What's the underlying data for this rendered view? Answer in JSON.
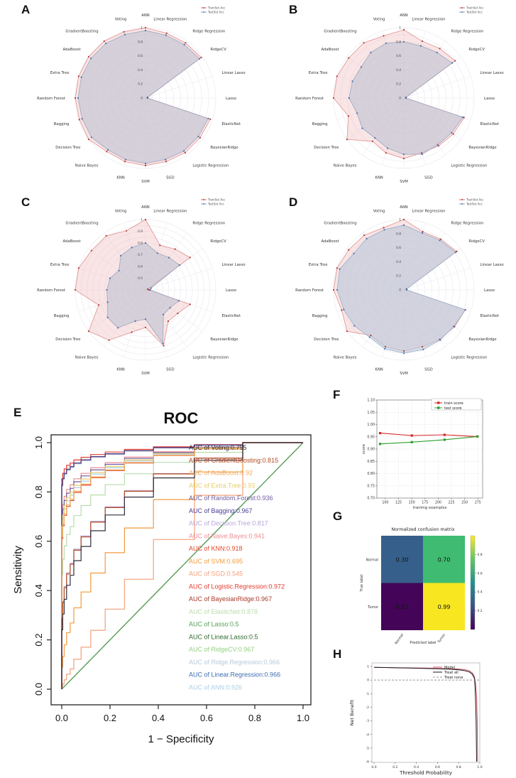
{
  "panel_letters": {
    "A": "A",
    "B": "B",
    "C": "C",
    "D": "D",
    "E": "E",
    "F": "F",
    "G": "G",
    "H": "H"
  },
  "radar_common": {
    "categories": [
      "ANN",
      "Linear Regression",
      "Ridge Regression",
      "RidgeCV",
      "Linear Lasso",
      "Lasso",
      "ElasticNet",
      "BayesianRidge",
      "Logistic Regression",
      "SGD",
      "SVM",
      "KNN",
      "Naive Bayes",
      "Decision Tree",
      "Bagging",
      "Random Forest",
      "Extra Tree",
      "AdaBoost",
      "GradientBoosting",
      "Voting"
    ],
    "legend": [
      {
        "label": "TrainSet Acc",
        "color": "#c23b3b"
      },
      {
        "label": "TestSet Acc",
        "color": "#5b79a8"
      }
    ]
  },
  "chart_data": [
    {
      "panel": "A",
      "type": "radar",
      "rmin": 0,
      "rmax": 1,
      "ticks": [
        {
          "v": 0,
          "t": "0"
        },
        {
          "v": 0.2,
          "t": "0.2"
        },
        {
          "v": 0.4,
          "t": "0.4"
        },
        {
          "v": 0.6,
          "t": "0.6"
        },
        {
          "v": 0.8,
          "t": "0.8"
        },
        {
          "v": 1,
          "t": "1"
        }
      ],
      "series": [
        {
          "name": "TrainSet Acc",
          "stroke": "#e29a9a",
          "fill": "rgba(240,190,190,0.40)",
          "dot": "#b03a3a",
          "values": [
            1.0,
            0.97,
            0.97,
            0.98,
            0.03,
            0.03,
            0.97,
            0.96,
            0.96,
            0.95,
            0.96,
            0.95,
            0.94,
            1.0,
            0.99,
            1.0,
            1.0,
            1.0,
            1.0,
            0.99
          ]
        },
        {
          "name": "TestSet Acc",
          "stroke": "#a3abc2",
          "fill": "rgba(185,192,210,0.55)",
          "dot": "#4a6fa5",
          "values": [
            0.96,
            0.94,
            0.94,
            0.95,
            0.03,
            0.03,
            0.94,
            0.93,
            0.93,
            0.92,
            0.93,
            0.92,
            0.91,
            0.95,
            0.95,
            0.96,
            0.96,
            0.96,
            0.96,
            0.95
          ]
        }
      ]
    },
    {
      "panel": "B",
      "type": "radar",
      "rmin": 0,
      "rmax": 1,
      "ticks": [
        {
          "v": 0,
          "t": "0"
        },
        {
          "v": 0.2,
          "t": "0.2"
        },
        {
          "v": 0.4,
          "t": "0.4"
        },
        {
          "v": 0.6,
          "t": "0.6"
        },
        {
          "v": 0.8,
          "t": "0.8"
        },
        {
          "v": 1,
          "t": "1"
        }
      ],
      "series": [
        {
          "name": "TrainSet Acc",
          "stroke": "#e29a9a",
          "fill": "rgba(240,190,190,0.40)",
          "dot": "#b03a3a",
          "values": [
            0.97,
            0.85,
            0.87,
            0.9,
            0.03,
            0.03,
            0.9,
            0.87,
            0.84,
            0.82,
            0.86,
            0.82,
            0.76,
            1.0,
            0.83,
            1.0,
            1.0,
            0.97,
            0.97,
            0.93
          ]
        },
        {
          "name": "TestSet Acc",
          "stroke": "#a3abc2",
          "fill": "rgba(185,192,210,0.55)",
          "dot": "#4a6fa5",
          "values": [
            0.8,
            0.78,
            0.8,
            0.85,
            0.03,
            0.03,
            0.88,
            0.84,
            0.82,
            0.84,
            0.8,
            0.75,
            0.7,
            0.73,
            0.7,
            0.78,
            0.77,
            0.75,
            0.8,
            0.82
          ]
        }
      ]
    },
    {
      "panel": "C",
      "type": "radar",
      "rmin": 0.4,
      "rmax": 1,
      "ticks": [
        {
          "v": 0.5,
          "t": "0.5"
        },
        {
          "v": 0.6,
          "t": "0.6"
        },
        {
          "v": 0.7,
          "t": "0.7"
        },
        {
          "v": 0.8,
          "t": "0.8"
        },
        {
          "v": 0.9,
          "t": "0.9"
        },
        {
          "v": 1,
          "t": "1"
        }
      ],
      "series": [
        {
          "name": "TrainSet Acc",
          "stroke": "#e29a9a",
          "fill": "rgba(240,190,190,0.40)",
          "dot": "#b03a3a",
          "values": [
            1.0,
            0.8,
            0.83,
            0.87,
            0.42,
            0.43,
            0.8,
            0.74,
            0.73,
            0.9,
            0.72,
            0.78,
            0.93,
            1.0,
            0.82,
            1.0,
            1.0,
            0.97,
            0.97,
            0.93
          ]
        },
        {
          "name": "TestSet Acc",
          "stroke": "#a3abc2",
          "fill": "rgba(185,192,210,0.55)",
          "dot": "#4a6fa5",
          "values": [
            0.8,
            0.73,
            0.74,
            0.76,
            0.45,
            0.44,
            0.7,
            0.66,
            0.66,
            0.88,
            0.65,
            0.68,
            0.8,
            0.8,
            0.74,
            0.73,
            0.72,
            0.68,
            0.76,
            0.78
          ]
        }
      ]
    },
    {
      "panel": "D",
      "type": "radar",
      "rmin": 0,
      "rmax": 1,
      "ticks": [
        {
          "v": 0,
          "t": "0"
        },
        {
          "v": 0.2,
          "t": "0.2"
        },
        {
          "v": 0.4,
          "t": "0.4"
        },
        {
          "v": 0.6,
          "t": "0.6"
        },
        {
          "v": 0.8,
          "t": "0.8"
        },
        {
          "v": 1,
          "t": "1"
        }
      ],
      "series": [
        {
          "name": "TrainSet Acc",
          "stroke": "#e29a9a",
          "fill": "rgba(240,190,190,0.40)",
          "dot": "#b03a3a",
          "values": [
            1.0,
            0.87,
            0.89,
            0.93,
            0.04,
            0.04,
            0.92,
            0.89,
            0.87,
            0.85,
            0.87,
            0.85,
            0.8,
            1.0,
            0.93,
            1.0,
            1.0,
            0.97,
            0.96,
            0.93
          ]
        },
        {
          "name": "TestSet Acc",
          "stroke": "#9fb4cc",
          "fill": "rgba(178,196,218,0.55)",
          "dot": "#4a6fa5",
          "values": [
            0.92,
            0.85,
            0.87,
            0.91,
            0.04,
            0.04,
            0.92,
            0.88,
            0.88,
            0.89,
            0.9,
            0.88,
            0.83,
            0.87,
            0.9,
            0.95,
            0.96,
            0.88,
            0.9,
            0.9
          ]
        }
      ]
    },
    {
      "panel": "E",
      "type": "roc",
      "title": "ROC",
      "xlabel": "1 − Specificity",
      "ylabel": "Sensitivity",
      "auc_prefix": "AUC of ",
      "axis_ticks": [
        "0.0",
        "0.2",
        "0.4",
        "0.6",
        "0.8",
        "1.0"
      ],
      "models": [
        {
          "name": "Voting",
          "auc": "0.795",
          "color": "#2e2e3e"
        },
        {
          "name": "GradientBoosting",
          "auc": "0.815",
          "color": "#b34a21"
        },
        {
          "name": "AdaBoost",
          "auc": "0.92",
          "color": "#f0a95c"
        },
        {
          "name": "Extra.Tree",
          "auc": "0.93",
          "color": "#e3cd6e"
        },
        {
          "name": "Random.Forest",
          "auc": "0.936",
          "color": "#6f5b9e"
        },
        {
          "name": "Bagging",
          "auc": "0.967",
          "color": "#4a3f94"
        },
        {
          "name": "Decision.Tree",
          "auc": "0.817",
          "color": "#b7a6d8"
        },
        {
          "name": "Naive.Bayes",
          "auc": "0.941",
          "color": "#ec8f96"
        },
        {
          "name": "KNN",
          "auc": "0.918",
          "color": "#e2472a"
        },
        {
          "name": "SVM",
          "auc": "0.695",
          "color": "#f29b3f"
        },
        {
          "name": "SGD",
          "auc": "0.545",
          "color": "#f4a07c"
        },
        {
          "name": "Logistic.Regression",
          "auc": "0.972",
          "color": "#e23c30"
        },
        {
          "name": "BayesianRidge",
          "auc": "0.967",
          "color": "#a93a28"
        },
        {
          "name": "ElasticNet",
          "auc": "0.878",
          "color": "#b9dcad"
        },
        {
          "name": "Lasso",
          "auc": "0.5",
          "color": "#55a054"
        },
        {
          "name": "Linear.Lasso",
          "auc": "0.5",
          "color": "#2f6b31"
        },
        {
          "name": "RidgeCV",
          "auc": "0.967",
          "color": "#92d07f"
        },
        {
          "name": "Ridge.Regression",
          "auc": "0.966",
          "color": "#b6c9de"
        },
        {
          "name": "Linear.Regression",
          "auc": "0.966",
          "color": "#3d6eb0"
        },
        {
          "name": "ANN",
          "auc": "0.926",
          "color": "#a9cfe6"
        }
      ]
    },
    {
      "panel": "F",
      "type": "line",
      "xlabel": "training examples",
      "ylabel": "score",
      "xlim": [
        84,
        284
      ],
      "ylim": [
        0.7,
        1.1
      ],
      "yticks": [
        "0.70",
        "0.75",
        "0.80",
        "0.85",
        "0.90",
        "0.95",
        "1.00",
        "1.05",
        "1.10"
      ],
      "xticks": [
        "100",
        "125",
        "150",
        "175",
        "200",
        "225",
        "250",
        "275"
      ],
      "series": [
        {
          "name": "train score",
          "color": "#d62728",
          "x": [
            90,
            150,
            212,
            274
          ],
          "y": [
            0.965,
            0.955,
            0.958,
            0.951
          ]
        },
        {
          "name": "test score",
          "color": "#2ca02c",
          "x": [
            90,
            150,
            212,
            274
          ],
          "y": [
            0.921,
            0.928,
            0.938,
            0.951
          ]
        }
      ]
    },
    {
      "panel": "G",
      "type": "heatmap",
      "title": "Normalized confusion matrix",
      "xlabel": "Predicted label",
      "ylabel": "True label",
      "row_labels": [
        "Normal",
        "Tumor"
      ],
      "col_labels": [
        "Normal",
        "Tumor"
      ],
      "values": [
        [
          "0.30",
          "0.70"
        ],
        [
          "0.01",
          "0.99"
        ]
      ],
      "cell_colors": [
        [
          "#36608b",
          "#3fbc71"
        ],
        [
          "#440559",
          "#f8e621"
        ]
      ],
      "colorbar_ticks": [
        "0.2",
        "0.4",
        "0.6",
        "0.8"
      ],
      "viridis": [
        "#440154",
        "#3b528b",
        "#21918c",
        "#5ec962",
        "#fde725"
      ]
    },
    {
      "panel": "H",
      "type": "dca",
      "xlabel": "Threshold Probability",
      "ylabel": "Net Benefit",
      "ylim": [
        -6,
        1
      ],
      "xlim": [
        0,
        1
      ],
      "yticks": [
        "1",
        "0",
        "-1",
        "-2",
        "-3",
        "-4",
        "-5",
        "-6"
      ],
      "xticks": [
        "0.0",
        "0.2",
        "0.4",
        "0.6",
        "0.8",
        "1.0"
      ],
      "curves": [
        {
          "name": "Model",
          "color": "#cc4d66",
          "dash": "",
          "x": [
            0,
            0.1,
            0.2,
            0.3,
            0.4,
            0.5,
            0.6,
            0.7,
            0.75,
            0.8,
            0.85,
            0.9,
            0.93,
            0.95,
            0.96,
            0.97,
            0.975,
            0.98
          ],
          "y": [
            0.93,
            0.92,
            0.91,
            0.9,
            0.89,
            0.88,
            0.86,
            0.84,
            0.83,
            0.81,
            0.77,
            0.68,
            0.52,
            0.25,
            -0.2,
            -1.2,
            -2.8,
            -6
          ]
        },
        {
          "name": "Treat all",
          "color": "#1a1a1a",
          "dash": "",
          "x": [
            0,
            0.1,
            0.2,
            0.3,
            0.4,
            0.5,
            0.6,
            0.7,
            0.75,
            0.8,
            0.85,
            0.9,
            0.93,
            0.95,
            0.955,
            0.96,
            0.965,
            0.97
          ],
          "y": [
            0.93,
            0.92,
            0.9,
            0.89,
            0.87,
            0.85,
            0.83,
            0.8,
            0.78,
            0.75,
            0.7,
            0.6,
            0.42,
            0.1,
            -0.5,
            -1.5,
            -3,
            -6
          ]
        },
        {
          "name": "Treat none",
          "color": "#999999",
          "dash": "3,2",
          "x": [
            0,
            1
          ],
          "y": [
            0,
            0
          ]
        }
      ]
    }
  ]
}
